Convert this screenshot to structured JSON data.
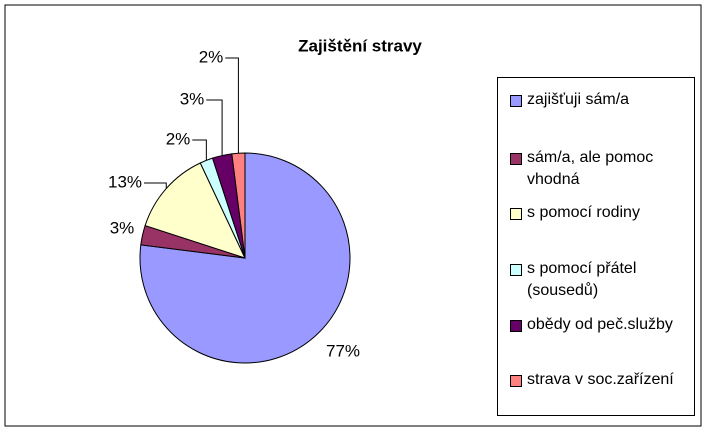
{
  "chart_data": {
    "type": "pie",
    "title": "Zajištění stravy",
    "categories": [
      "zajišťuji sám/a",
      "sám/a, ale pomoc vhodná",
      "s pomocí rodiny",
      "s pomocí přátel (sousedů)",
      "obědy od peč.služby",
      "strava v soc.zařízení"
    ],
    "values": [
      77,
      3,
      13,
      2,
      3,
      2
    ],
    "value_labels": [
      "77%",
      "3%",
      "13%",
      "2%",
      "3%",
      "2%"
    ],
    "colors": [
      "#9999FF",
      "#993366",
      "#FFFFCC",
      "#CCFFFF",
      "#660066",
      "#FF8080"
    ],
    "legend": "right"
  }
}
